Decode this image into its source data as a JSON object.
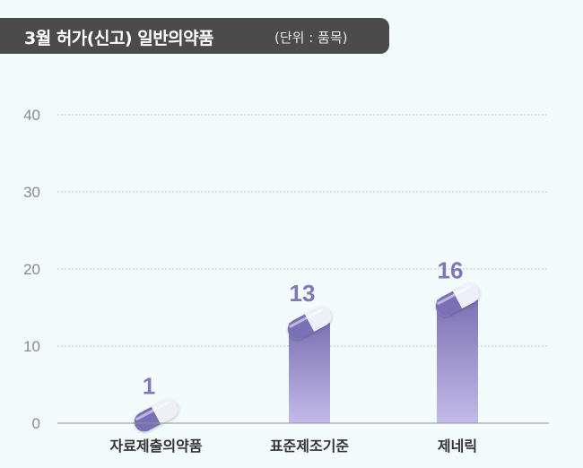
{
  "header": {
    "title": "3월 허가(신고) 일반의약품",
    "unit": "(단위 : 품목)"
  },
  "chart_data": {
    "type": "bar",
    "title": "3월 허가(신고) 일반의약품",
    "subtitle": "(단위 : 품목)",
    "categories": [
      "자료제출의약품",
      "표준제조기준",
      "제네릭"
    ],
    "values": [
      1,
      13,
      16
    ],
    "yticks": [
      0,
      10,
      20,
      30,
      40
    ],
    "ylim": [
      0,
      40
    ],
    "xlabel": "",
    "ylabel": "",
    "grid": true,
    "colors": {
      "bar_top": "#7d72b4",
      "bar_bottom": "#c2bbe8",
      "label": "#8077b6",
      "axis_text": "#8a8a8a",
      "grid": "#bfc6c6",
      "pill_dark": "#7a6fb5",
      "pill_light": "#eef0f8"
    }
  }
}
